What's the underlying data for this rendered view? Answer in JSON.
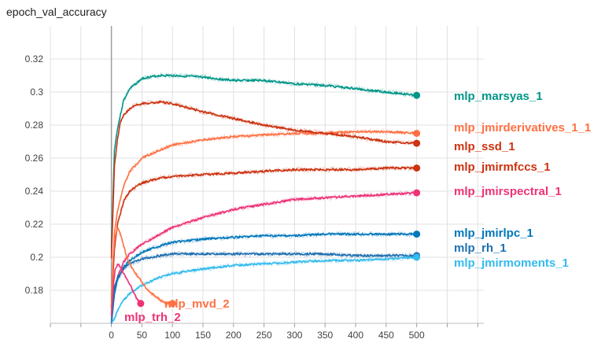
{
  "chart_data": {
    "type": "line",
    "title": "epoch_val_accuracy",
    "xlabel": "",
    "ylabel": "",
    "xlim": [
      -100,
      610
    ],
    "ylim": [
      0.16,
      0.34
    ],
    "x_ticks": [
      0,
      50,
      100,
      150,
      200,
      250,
      300,
      350,
      400,
      450,
      500
    ],
    "y_ticks": [
      0.18,
      0.2,
      0.22,
      0.24,
      0.26,
      0.28,
      0.3,
      0.32
    ],
    "y_tick_labels": [
      "0.18",
      "0.2",
      "0.22",
      "0.24",
      "0.26",
      "0.28",
      "0.3",
      "0.32"
    ],
    "grid": true,
    "series": [
      {
        "name": "mlp_marsyas_1",
        "color": "#009688",
        "x": [
          0,
          5,
          10,
          20,
          30,
          40,
          50,
          60,
          80,
          100,
          150,
          200,
          250,
          300,
          350,
          400,
          450,
          500
        ],
        "values": [
          0.205,
          0.265,
          0.278,
          0.295,
          0.302,
          0.305,
          0.308,
          0.309,
          0.31,
          0.31,
          0.309,
          0.307,
          0.307,
          0.305,
          0.304,
          0.302,
          0.3,
          0.298
        ]
      },
      {
        "name": "mlp_jmirderivatives_1_1",
        "color": "#FF7043",
        "x": [
          0,
          5,
          10,
          20,
          30,
          50,
          80,
          100,
          150,
          200,
          250,
          300,
          350,
          400,
          450,
          500
        ],
        "values": [
          0.175,
          0.215,
          0.228,
          0.243,
          0.252,
          0.26,
          0.265,
          0.268,
          0.271,
          0.273,
          0.274,
          0.275,
          0.275,
          0.276,
          0.276,
          0.275
        ]
      },
      {
        "name": "mlp_ssd_1",
        "color": "#CC3311",
        "x": [
          0,
          5,
          10,
          15,
          20,
          30,
          40,
          50,
          80,
          100,
          150,
          200,
          250,
          300,
          350,
          400,
          450,
          500
        ],
        "values": [
          0.2,
          0.255,
          0.272,
          0.282,
          0.286,
          0.29,
          0.292,
          0.293,
          0.294,
          0.293,
          0.288,
          0.284,
          0.28,
          0.277,
          0.275,
          0.273,
          0.27,
          0.269
        ]
      },
      {
        "name": "mlp_jmirmfccs_1",
        "color": "#CC3311",
        "x": [
          0,
          5,
          10,
          20,
          30,
          50,
          80,
          100,
          150,
          200,
          250,
          300,
          350,
          400,
          450,
          500
        ],
        "values": [
          0.17,
          0.205,
          0.22,
          0.234,
          0.24,
          0.245,
          0.248,
          0.249,
          0.25,
          0.251,
          0.252,
          0.253,
          0.253,
          0.253,
          0.254,
          0.254
        ]
      },
      {
        "name": "mlp_jmirspectral_1",
        "color": "#EE3377",
        "x": [
          0,
          5,
          10,
          20,
          30,
          50,
          80,
          100,
          150,
          200,
          250,
          300,
          350,
          400,
          450,
          500
        ],
        "values": [
          0.16,
          0.178,
          0.188,
          0.197,
          0.202,
          0.208,
          0.214,
          0.218,
          0.224,
          0.229,
          0.232,
          0.235,
          0.236,
          0.237,
          0.238,
          0.239
        ]
      },
      {
        "name": "mlp_jmirlpc_1",
        "color": "#0077BB",
        "x": [
          0,
          5,
          10,
          20,
          30,
          50,
          80,
          100,
          150,
          200,
          250,
          300,
          350,
          400,
          450,
          500
        ],
        "values": [
          0.16,
          0.178,
          0.186,
          0.194,
          0.198,
          0.203,
          0.207,
          0.209,
          0.211,
          0.212,
          0.213,
          0.213,
          0.214,
          0.214,
          0.214,
          0.214
        ]
      },
      {
        "name": "mlp_rh_1",
        "color": "#1F6FB0",
        "x": [
          0,
          5,
          10,
          20,
          30,
          50,
          80,
          100,
          150,
          200,
          250,
          300,
          350,
          400,
          450,
          500
        ],
        "values": [
          0.16,
          0.182,
          0.188,
          0.193,
          0.196,
          0.199,
          0.201,
          0.202,
          0.202,
          0.202,
          0.202,
          0.202,
          0.202,
          0.201,
          0.201,
          0.201
        ]
      },
      {
        "name": "mlp_jmirmoments_1",
        "color": "#33BBEE",
        "x": [
          0,
          5,
          10,
          20,
          30,
          50,
          80,
          100,
          150,
          200,
          250,
          300,
          350,
          400,
          450,
          500
        ],
        "values": [
          0.16,
          0.163,
          0.168,
          0.174,
          0.178,
          0.183,
          0.188,
          0.19,
          0.193,
          0.195,
          0.196,
          0.197,
          0.198,
          0.198,
          0.199,
          0.2
        ]
      },
      {
        "name": "mlp_mvd_2",
        "color": "#FF7043",
        "x": [
          0,
          3,
          6,
          10,
          15,
          20,
          25,
          30,
          40,
          50,
          60,
          70,
          80,
          90,
          100
        ],
        "values": [
          0.17,
          0.2,
          0.212,
          0.218,
          0.214,
          0.207,
          0.2,
          0.196,
          0.19,
          0.185,
          0.18,
          0.177,
          0.174,
          0.172,
          0.172
        ]
      },
      {
        "name": "mlp_trh_2",
        "color": "#EE3377",
        "x": [
          0,
          3,
          6,
          10,
          15,
          20,
          25,
          30,
          35,
          40,
          45,
          48
        ],
        "values": [
          0.165,
          0.182,
          0.192,
          0.196,
          0.194,
          0.19,
          0.187,
          0.184,
          0.18,
          0.176,
          0.173,
          0.172
        ]
      }
    ]
  }
}
